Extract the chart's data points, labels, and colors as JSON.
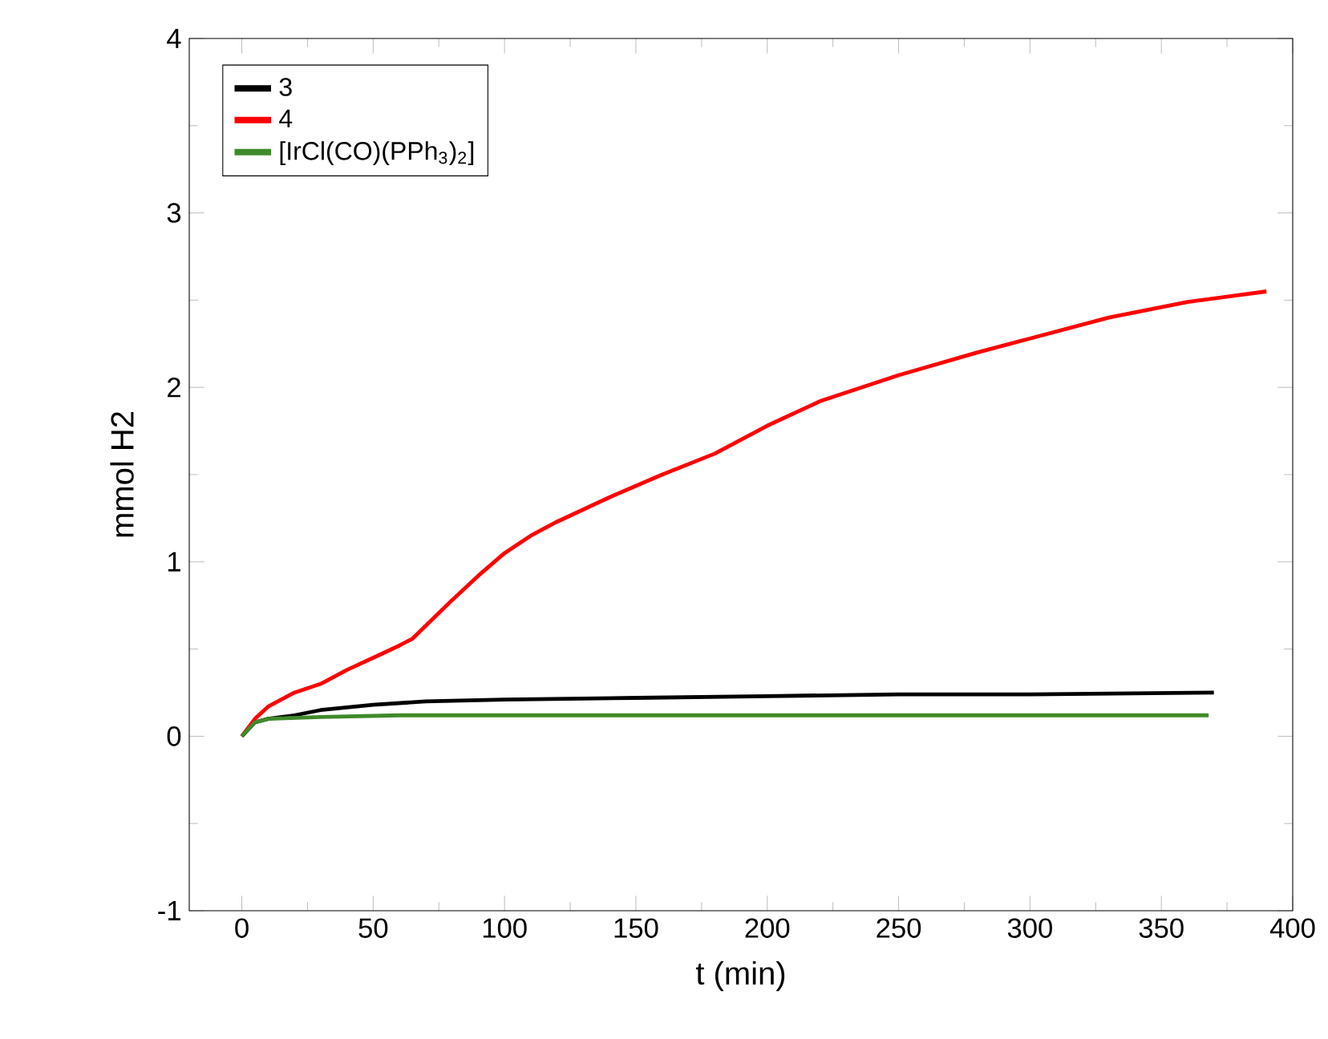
{
  "chart_data": {
    "type": "line",
    "xlabel": "t (min)",
    "ylabel": "mmol H2",
    "xlim": [
      -20,
      400
    ],
    "xticks": [
      0,
      50,
      100,
      150,
      200,
      250,
      300,
      350,
      400
    ],
    "ylim": [
      -1,
      4
    ],
    "yticks": [
      -1,
      0,
      1,
      2,
      3,
      4
    ],
    "grid": false,
    "legend": "top left",
    "marker": "none",
    "line_style": "solid",
    "series": [
      {
        "name": "3",
        "color": "#000000",
        "x": [
          0,
          5,
          10,
          20,
          30,
          50,
          70,
          100,
          150,
          200,
          250,
          300,
          370
        ],
        "values": [
          0,
          0.08,
          0.1,
          0.12,
          0.15,
          0.18,
          0.2,
          0.21,
          0.22,
          0.23,
          0.24,
          0.24,
          0.25
        ]
      },
      {
        "name": "4",
        "color": "#ff0000",
        "x": [
          0,
          5,
          10,
          20,
          30,
          40,
          50,
          60,
          65,
          80,
          90,
          100,
          110,
          120,
          140,
          160,
          180,
          200,
          220,
          250,
          280,
          300,
          330,
          360,
          390
        ],
        "values": [
          0,
          0.1,
          0.17,
          0.25,
          0.3,
          0.38,
          0.45,
          0.52,
          0.56,
          0.78,
          0.92,
          1.05,
          1.15,
          1.23,
          1.37,
          1.5,
          1.62,
          1.78,
          1.92,
          2.07,
          2.2,
          2.28,
          2.4,
          2.49,
          2.55
        ]
      },
      {
        "name": "[IrCl(CO)(PPh$_{3}$)$_{2}$]",
        "color": "#3f8a2a",
        "x": [
          0,
          5,
          10,
          30,
          60,
          100,
          200,
          300,
          368
        ],
        "values": [
          0,
          0.08,
          0.1,
          0.11,
          0.12,
          0.12,
          0.12,
          0.12,
          0.12
        ]
      }
    ]
  }
}
